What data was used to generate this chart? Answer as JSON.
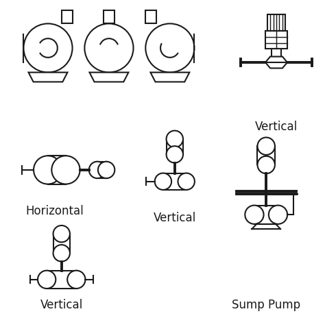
{
  "bg_color": "#ffffff",
  "line_color": "#1a1a1a",
  "lw": 1.5,
  "lw_thick": 2.8,
  "labels": {
    "horizontal": "Horizontal",
    "vertical1": "Vertical",
    "vertical2": "Vertical",
    "vertical3": "Vertical",
    "sump": "Sump Pump"
  },
  "label_fontsize": 12
}
